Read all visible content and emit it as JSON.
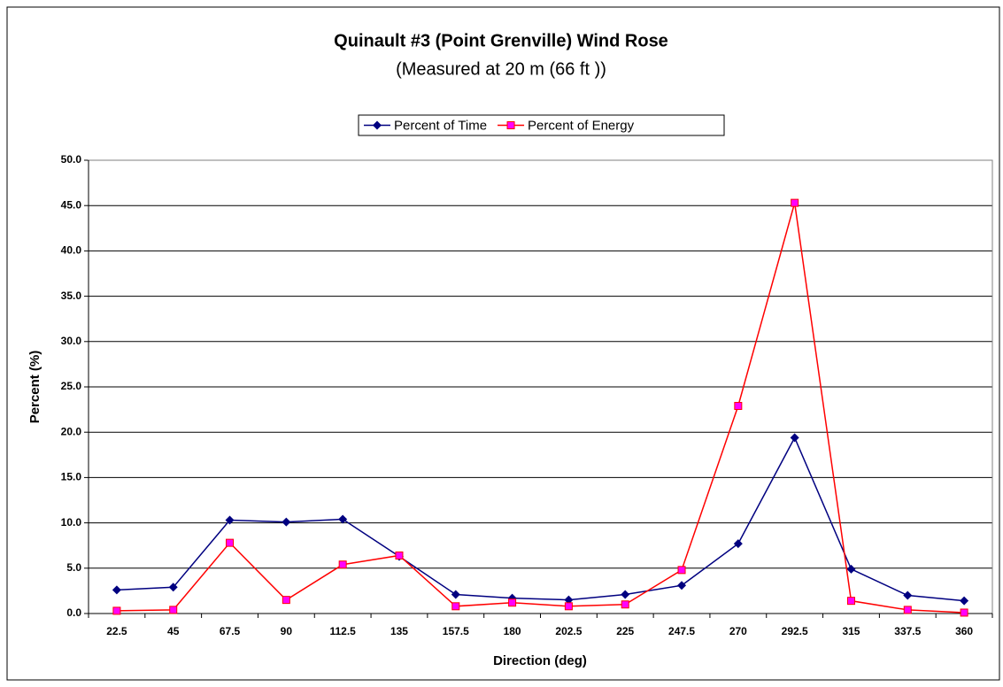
{
  "chart_data": {
    "type": "line",
    "title": "Quinault #3 (Point Grenville)  Wind Rose",
    "subtitle": "(Measured at 20 m (66 ft ))",
    "xlabel": "Direction (deg)",
    "ylabel": "Percent (%)",
    "categories": [
      "22.5",
      "45",
      "67.5",
      "90",
      "112.5",
      "135",
      "157.5",
      "180",
      "202.5",
      "225",
      "247.5",
      "270",
      "292.5",
      "315",
      "337.5",
      "360"
    ],
    "series": [
      {
        "name": "Percent of Time",
        "color": "#000080",
        "marker": "diamond",
        "values": [
          2.6,
          2.9,
          10.3,
          10.1,
          10.4,
          6.3,
          2.1,
          1.7,
          1.5,
          2.1,
          3.1,
          7.7,
          19.4,
          4.9,
          2.0,
          1.4
        ]
      },
      {
        "name": "Percent of Energy",
        "color": "#ff0000",
        "marker": "square",
        "marker_color": "#ff00ff",
        "values": [
          0.3,
          0.4,
          7.8,
          1.5,
          5.4,
          6.4,
          0.8,
          1.2,
          0.8,
          1.0,
          4.8,
          22.9,
          45.3,
          1.4,
          0.4,
          0.1
        ]
      }
    ],
    "ylim": [
      0,
      50
    ],
    "yticks": [
      {
        "value": 0,
        "label": "0.0"
      },
      {
        "value": 5,
        "label": "5.0"
      },
      {
        "value": 10,
        "label": "10.0"
      },
      {
        "value": 15,
        "label": "15.0"
      },
      {
        "value": 20,
        "label": "20.0"
      },
      {
        "value": 25,
        "label": "25.0"
      },
      {
        "value": 30,
        "label": "30.0"
      },
      {
        "value": 35,
        "label": "35.0"
      },
      {
        "value": 40,
        "label": "40.0"
      },
      {
        "value": 45,
        "label": "45.0"
      },
      {
        "value": 50,
        "label": "50.0"
      }
    ],
    "grid": true,
    "legend": "top"
  }
}
